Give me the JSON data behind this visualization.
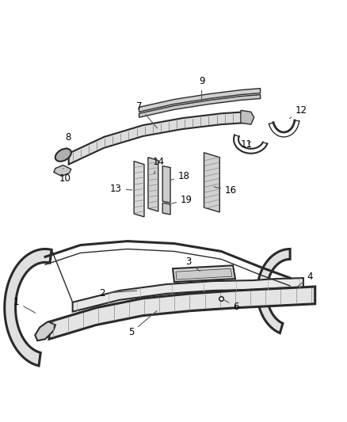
{
  "background_color": "#ffffff",
  "fig_width": 4.38,
  "fig_height": 5.33,
  "dpi": 100,
  "line_color": "#2a2a2a",
  "label_fontsize": 8.5,
  "label_color": "#000000"
}
